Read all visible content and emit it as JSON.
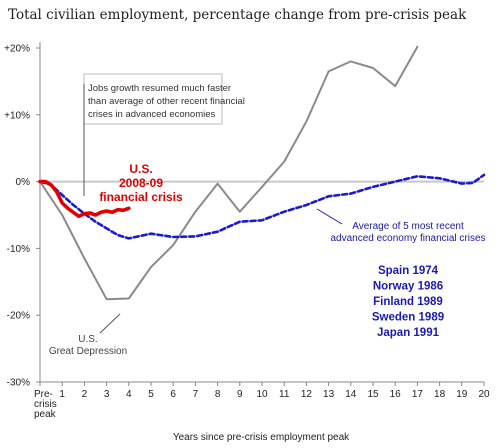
{
  "chart_data": {
    "type": "line",
    "title": "Total civilian employment, percentage change from pre-crisis peak",
    "xlabel": "Years since pre-crisis employment peak",
    "ylabel": "",
    "x_tick_labels": [
      "Pre-\ncrisis\npeak",
      "1",
      "2",
      "3",
      "4",
      "5",
      "6",
      "7",
      "8",
      "9",
      "10",
      "11",
      "12",
      "13",
      "14",
      "15",
      "16",
      "17",
      "18",
      "19",
      "20"
    ],
    "y_tick_labels": [
      "+20%",
      "+10%",
      "0%",
      "-10%",
      "-20%",
      "-30%"
    ],
    "xlim": [
      0,
      20
    ],
    "ylim": [
      -30,
      20
    ],
    "grid": false,
    "zero_line": true,
    "series": [
      {
        "name": "U.S. Great Depression",
        "color": "#8a8a8a",
        "style": "solid",
        "x": [
          0,
          1,
          2,
          3,
          4,
          5,
          6,
          7,
          8,
          9,
          10,
          11,
          12,
          13,
          14,
          15,
          16,
          17
        ],
        "y": [
          0,
          -5,
          -11.5,
          -17.6,
          -17.5,
          -12.8,
          -9.5,
          -4.5,
          -0.3,
          -4.5,
          -0.8,
          3,
          9,
          16.5,
          18,
          17,
          14.3,
          20.2
        ]
      },
      {
        "name": "Average of 5 most recent advanced economy financial crises",
        "color": "#1a1ad0",
        "style": "dashed",
        "x": [
          0,
          0.5,
          1,
          1.5,
          2,
          2.5,
          3,
          3.5,
          4,
          5,
          6,
          7,
          8,
          9,
          10,
          11,
          12,
          13,
          14,
          15,
          16,
          17,
          18,
          19,
          19.5,
          20
        ],
        "y": [
          0,
          -0.5,
          -2,
          -3.5,
          -4.8,
          -6,
          -7,
          -8,
          -8.5,
          -7.8,
          -8.3,
          -8.2,
          -7.5,
          -6,
          -5.8,
          -4.5,
          -3.5,
          -2.2,
          -1.8,
          -0.8,
          0,
          0.8,
          0.5,
          -0.3,
          -0.2,
          1
        ]
      },
      {
        "name": "U.S. 2008-09 financial crisis",
        "color": "#e00000",
        "style": "solid",
        "x": [
          0,
          0.25,
          0.5,
          0.75,
          1,
          1.25,
          1.5,
          1.75,
          2,
          2.25,
          2.5,
          2.75,
          3,
          3.25,
          3.5,
          3.75,
          4
        ],
        "y": [
          0,
          0,
          -0.5,
          -1.5,
          -3.2,
          -4,
          -4.6,
          -5.2,
          -4.8,
          -4.7,
          -5,
          -4.6,
          -4.4,
          -4.6,
          -4.2,
          -4.3,
          -4
        ]
      }
    ],
    "annotations": {
      "callout": [
        "Jobs growth resumed much faster",
        "than average of other recent financial",
        "crises in advanced economies"
      ],
      "us08_label": [
        "U.S.",
        "2008-09",
        "financial crisis"
      ],
      "avg_label": [
        "Average of 5 most recent",
        "advanced economy financial crises"
      ],
      "countries": [
        "Spain 1974",
        "Norway 1986",
        "Finland 1989",
        "Sweden 1989",
        "Japan 1991"
      ],
      "gd_label": [
        "U.S.",
        "Great Depression"
      ]
    }
  }
}
